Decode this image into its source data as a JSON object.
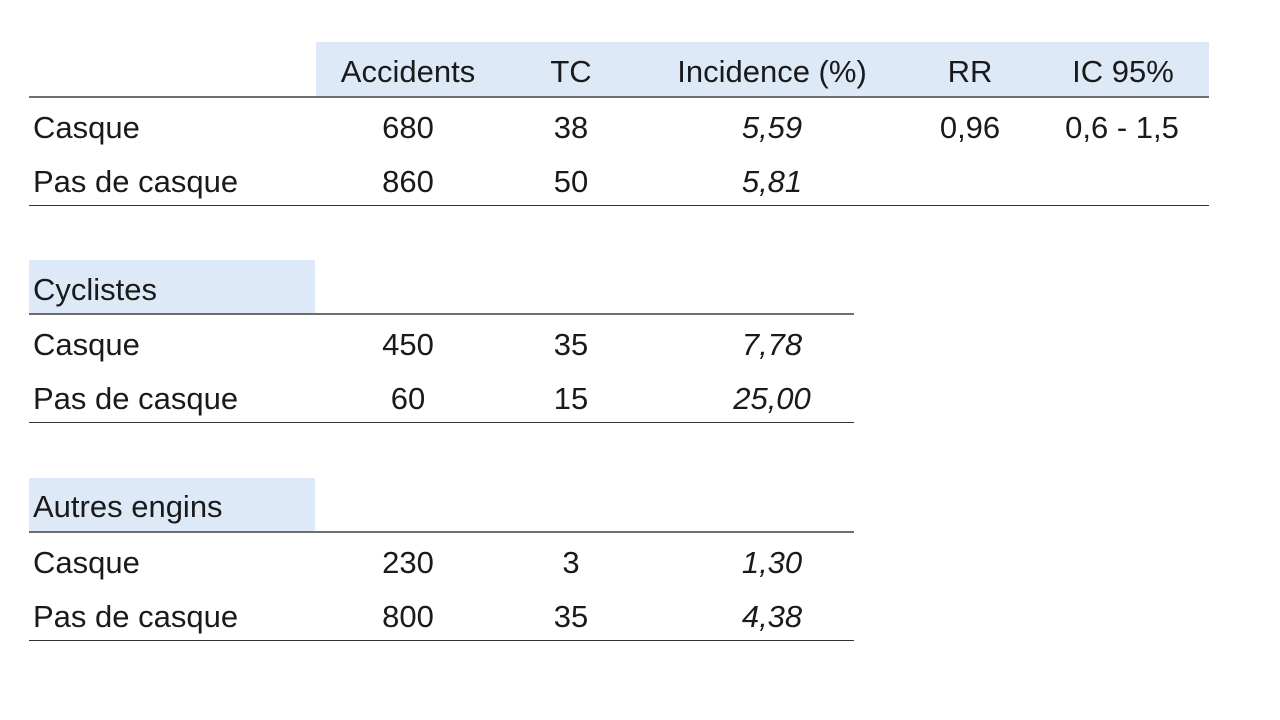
{
  "header": {
    "accidents": "Accidents",
    "tc": "TC",
    "incidence": "Incidence  (%)",
    "rr": "RR",
    "ic": "IC 95%"
  },
  "overall": {
    "rows": [
      {
        "label": "Casque",
        "accidents": "680",
        "tc": "38",
        "incidence": "5,59",
        "rr": "0,96",
        "ic": "0,6 -  1,5"
      },
      {
        "label": "Pas de casque",
        "accidents": "860",
        "tc": "50",
        "incidence": "5,81"
      }
    ]
  },
  "cyclistes": {
    "title": "Cyclistes",
    "rows": [
      {
        "label": "Casque",
        "accidents": "450",
        "tc": "35",
        "incidence": "7,78"
      },
      {
        "label": "Pas de casque",
        "accidents": "60",
        "tc": "15",
        "incidence": "25,00"
      }
    ]
  },
  "autres": {
    "title": "Autres engins",
    "rows": [
      {
        "label": "Casque",
        "accidents": "230",
        "tc": "3",
        "incidence": "1,30"
      },
      {
        "label": "Pas de casque",
        "accidents": "800",
        "tc": "35",
        "incidence": "4,38"
      }
    ]
  }
}
